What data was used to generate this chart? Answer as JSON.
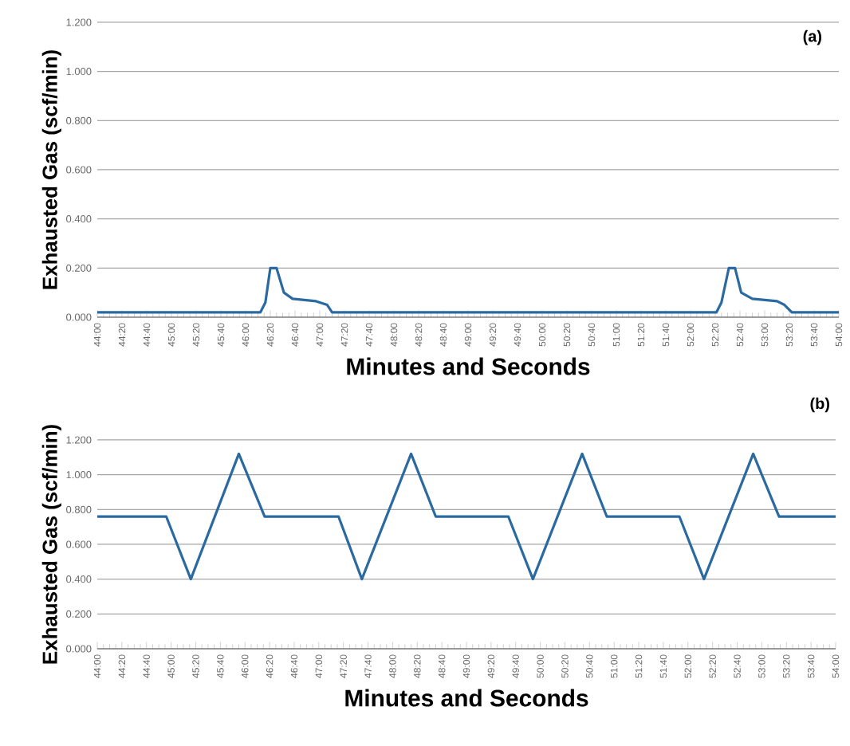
{
  "chart_data": [
    {
      "type": "line",
      "title": "(a)",
      "xlabel": "Minutes and Seconds",
      "ylabel": "Exhausted Gas (scf/min)",
      "color": "#2a6aa0",
      "grid": "y",
      "x": [
        2640,
        2772,
        2776,
        2780,
        2785,
        2791,
        2798,
        2817,
        2826,
        2830,
        3141,
        3145,
        3151,
        3156,
        3161,
        3170,
        3190,
        3196,
        3202,
        3240
      ],
      "values": [
        0.02,
        0.02,
        0.06,
        0.2,
        0.2,
        0.1,
        0.075,
        0.065,
        0.05,
        0.02,
        0.02,
        0.06,
        0.2,
        0.2,
        0.1,
        0.075,
        0.065,
        0.05,
        0.02,
        0.02
      ],
      "xlim": [
        2640,
        3240
      ],
      "xticks": [
        {
          "value": 2640,
          "label": "44:00"
        },
        {
          "value": 2660,
          "label": "44:20"
        },
        {
          "value": 2680,
          "label": "44:40"
        },
        {
          "value": 2700,
          "label": "45:00"
        },
        {
          "value": 2720,
          "label": "45:20"
        },
        {
          "value": 2740,
          "label": "45:40"
        },
        {
          "value": 2760,
          "label": "46:00"
        },
        {
          "value": 2780,
          "label": "46:20"
        },
        {
          "value": 2800,
          "label": "46:40"
        },
        {
          "value": 2820,
          "label": "47:00"
        },
        {
          "value": 2840,
          "label": "47:20"
        },
        {
          "value": 2860,
          "label": "47:40"
        },
        {
          "value": 2880,
          "label": "48:00"
        },
        {
          "value": 2900,
          "label": "48:20"
        },
        {
          "value": 2920,
          "label": "48:40"
        },
        {
          "value": 2940,
          "label": "49:00"
        },
        {
          "value": 2960,
          "label": "49:20"
        },
        {
          "value": 2980,
          "label": "49:40"
        },
        {
          "value": 3000,
          "label": "50:00"
        },
        {
          "value": 3020,
          "label": "50:20"
        },
        {
          "value": 3040,
          "label": "50:40"
        },
        {
          "value": 3060,
          "label": "51:00"
        },
        {
          "value": 3080,
          "label": "51:20"
        },
        {
          "value": 3100,
          "label": "51:40"
        },
        {
          "value": 3120,
          "label": "52:00"
        },
        {
          "value": 3140,
          "label": "52:20"
        },
        {
          "value": 3160,
          "label": "52:40"
        },
        {
          "value": 3180,
          "label": "53:00"
        },
        {
          "value": 3200,
          "label": "53:20"
        },
        {
          "value": 3220,
          "label": "53:40"
        },
        {
          "value": 3240,
          "label": "54:00"
        }
      ],
      "ylim": [
        0,
        1.2
      ],
      "yticks": [
        {
          "value": 0,
          "label": "0.000"
        },
        {
          "value": 0.2,
          "label": "0.200"
        },
        {
          "value": 0.4,
          "label": "0.400"
        },
        {
          "value": 0.6,
          "label": "0.600"
        },
        {
          "value": 0.8,
          "label": "0.800"
        },
        {
          "value": 1.0,
          "label": "1.000"
        },
        {
          "value": 1.2,
          "label": "1.200"
        }
      ]
    },
    {
      "type": "line",
      "title": "(b)",
      "xlabel": "Minutes and Seconds",
      "ylabel": "Exhausted Gas (scf/min)",
      "color": "#2a6aa0",
      "grid": "y",
      "x": [
        2640,
        2696,
        2716,
        2755,
        2776,
        2836,
        2855,
        2895,
        2915,
        2974,
        2994,
        3034,
        3054,
        3113,
        3133,
        3173,
        3194,
        3240
      ],
      "values": [
        0.76,
        0.76,
        0.4,
        1.12,
        0.76,
        0.76,
        0.4,
        1.12,
        0.76,
        0.76,
        0.4,
        1.12,
        0.76,
        0.76,
        0.4,
        1.12,
        0.76,
        0.76
      ],
      "xlim": [
        2640,
        3240
      ],
      "xticks": [
        {
          "value": 2640,
          "label": "44:00"
        },
        {
          "value": 2660,
          "label": "44:20"
        },
        {
          "value": 2680,
          "label": "44:40"
        },
        {
          "value": 2700,
          "label": "45:00"
        },
        {
          "value": 2720,
          "label": "45:20"
        },
        {
          "value": 2740,
          "label": "45:40"
        },
        {
          "value": 2760,
          "label": "46:00"
        },
        {
          "value": 2780,
          "label": "46:20"
        },
        {
          "value": 2800,
          "label": "46:40"
        },
        {
          "value": 2820,
          "label": "47:00"
        },
        {
          "value": 2840,
          "label": "47:20"
        },
        {
          "value": 2860,
          "label": "47:40"
        },
        {
          "value": 2880,
          "label": "48:00"
        },
        {
          "value": 2900,
          "label": "48:20"
        },
        {
          "value": 2920,
          "label": "48:40"
        },
        {
          "value": 2940,
          "label": "49:00"
        },
        {
          "value": 2960,
          "label": "49:20"
        },
        {
          "value": 2980,
          "label": "49:40"
        },
        {
          "value": 3000,
          "label": "50:00"
        },
        {
          "value": 3020,
          "label": "50:20"
        },
        {
          "value": 3040,
          "label": "50:40"
        },
        {
          "value": 3060,
          "label": "51:00"
        },
        {
          "value": 3080,
          "label": "51:20"
        },
        {
          "value": 3100,
          "label": "51:40"
        },
        {
          "value": 3120,
          "label": "52:00"
        },
        {
          "value": 3140,
          "label": "52:20"
        },
        {
          "value": 3160,
          "label": "52:40"
        },
        {
          "value": 3180,
          "label": "53:00"
        },
        {
          "value": 3200,
          "label": "53:20"
        },
        {
          "value": 3220,
          "label": "53:40"
        },
        {
          "value": 3240,
          "label": "54:00"
        }
      ],
      "ylim": [
        0,
        1.2
      ],
      "yticks": [
        {
          "value": 0,
          "label": "0.000"
        },
        {
          "value": 0.2,
          "label": "0.200"
        },
        {
          "value": 0.4,
          "label": "0.400"
        },
        {
          "value": 0.6,
          "label": "0.600"
        },
        {
          "value": 0.8,
          "label": "0.800"
        },
        {
          "value": 1.0,
          "label": "1.000"
        },
        {
          "value": 1.2,
          "label": "1.200"
        }
      ]
    }
  ]
}
